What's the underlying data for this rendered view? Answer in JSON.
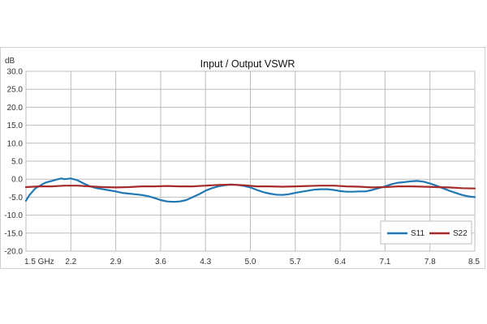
{
  "chart_data": {
    "type": "line",
    "title": "Input / Output VSWR",
    "ylabel": "dB",
    "xlabel": "",
    "xlim": [
      1.5,
      8.5
    ],
    "ylim": [
      -20,
      30
    ],
    "x_ticks": [
      1.5,
      2.2,
      2.9,
      3.6,
      4.3,
      5.0,
      5.7,
      6.4,
      7.1,
      7.8,
      8.5
    ],
    "x_tick_labels": [
      "1.5 GHz",
      "2.2",
      "2.9",
      "3.6",
      "4.3",
      "5.0",
      "5.7",
      "6.4",
      "7.1",
      "7.8",
      "8.5"
    ],
    "y_ticks": [
      30,
      25,
      20,
      15,
      10,
      5,
      0,
      -5,
      -10,
      -15,
      -20
    ],
    "y_tick_labels": [
      "30.0",
      "25.0",
      "20.0",
      "15.0",
      "10.0",
      "5.0",
      "0.0",
      "-5.0",
      "-10.0",
      "-15.0",
      "-20.0"
    ],
    "grid": true,
    "legend_position": "bottom-right",
    "series": [
      {
        "name": "S11",
        "color": "#1f77b4",
        "x": [
          1.5,
          1.55,
          1.6,
          1.65,
          1.7,
          1.8,
          1.9,
          2.0,
          2.05,
          2.1,
          2.2,
          2.3,
          2.4,
          2.5,
          2.6,
          2.7,
          2.8,
          2.9,
          3.0,
          3.1,
          3.2,
          3.3,
          3.4,
          3.5,
          3.6,
          3.7,
          3.8,
          3.9,
          4.0,
          4.1,
          4.2,
          4.3,
          4.4,
          4.5,
          4.6,
          4.7,
          4.8,
          4.9,
          5.0,
          5.1,
          5.2,
          5.3,
          5.4,
          5.5,
          5.6,
          5.7,
          5.8,
          5.9,
          6.0,
          6.1,
          6.2,
          6.3,
          6.4,
          6.5,
          6.6,
          6.7,
          6.8,
          6.9,
          7.0,
          7.1,
          7.2,
          7.3,
          7.4,
          7.5,
          7.6,
          7.7,
          7.8,
          7.9,
          8.0,
          8.1,
          8.2,
          8.3,
          8.4,
          8.5
        ],
        "y": [
          -6.0,
          -4.5,
          -3.5,
          -2.5,
          -2.0,
          -1.0,
          -0.5,
          0.0,
          0.2,
          0.0,
          0.2,
          -0.3,
          -1.2,
          -2.0,
          -2.5,
          -2.8,
          -3.1,
          -3.4,
          -3.8,
          -4.0,
          -4.2,
          -4.4,
          -4.7,
          -5.2,
          -5.8,
          -6.2,
          -6.3,
          -6.2,
          -5.8,
          -5.0,
          -4.2,
          -3.2,
          -2.5,
          -2.0,
          -1.7,
          -1.5,
          -1.6,
          -1.9,
          -2.3,
          -3.0,
          -3.6,
          -4.0,
          -4.3,
          -4.4,
          -4.2,
          -3.8,
          -3.5,
          -3.2,
          -2.9,
          -2.8,
          -2.8,
          -3.0,
          -3.3,
          -3.5,
          -3.5,
          -3.4,
          -3.4,
          -3.0,
          -2.5,
          -2.0,
          -1.4,
          -1.0,
          -0.8,
          -0.6,
          -0.5,
          -0.7,
          -1.2,
          -1.8,
          -2.5,
          -3.2,
          -3.8,
          -4.4,
          -4.8,
          -5.0
        ]
      },
      {
        "name": "S22",
        "color": "#a52a2a",
        "x": [
          1.5,
          1.7,
          1.9,
          2.1,
          2.3,
          2.5,
          2.7,
          2.9,
          3.1,
          3.3,
          3.5,
          3.7,
          3.9,
          4.1,
          4.3,
          4.5,
          4.7,
          4.9,
          5.1,
          5.3,
          5.5,
          5.7,
          5.9,
          6.1,
          6.3,
          6.5,
          6.7,
          6.9,
          7.1,
          7.3,
          7.5,
          7.7,
          7.9,
          8.1,
          8.3,
          8.5
        ],
        "y": [
          -2.2,
          -2.0,
          -2.0,
          -1.8,
          -1.8,
          -2.0,
          -2.2,
          -2.3,
          -2.2,
          -2.0,
          -2.0,
          -1.9,
          -2.0,
          -2.0,
          -1.8,
          -1.6,
          -1.5,
          -1.7,
          -2.0,
          -2.0,
          -2.1,
          -2.0,
          -1.9,
          -1.8,
          -1.8,
          -2.0,
          -2.1,
          -2.3,
          -2.2,
          -2.0,
          -2.0,
          -2.1,
          -2.2,
          -2.3,
          -2.5,
          -2.6
        ]
      }
    ]
  }
}
